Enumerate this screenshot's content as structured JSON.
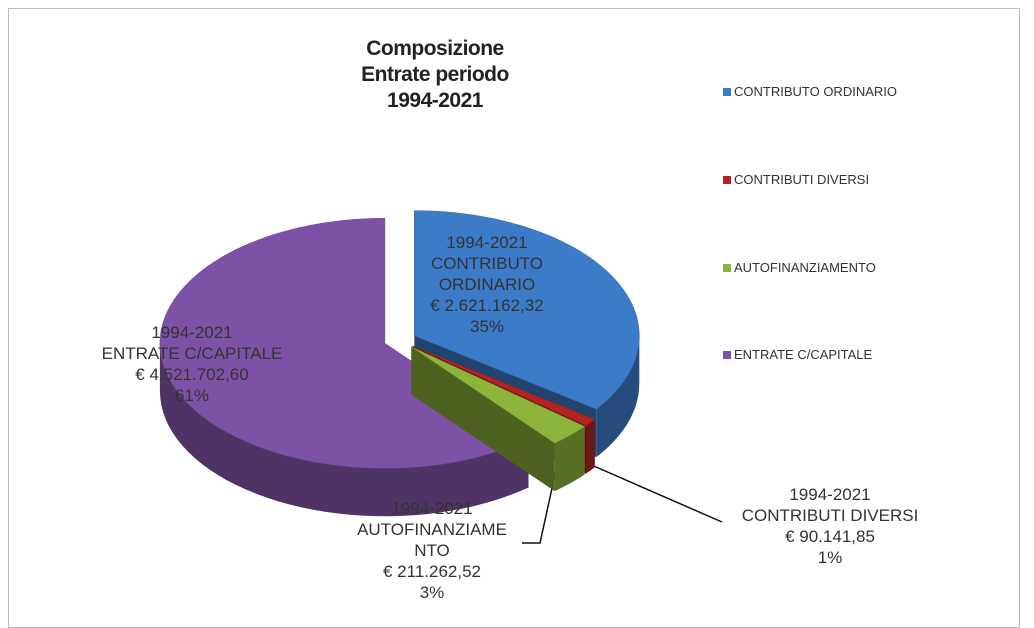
{
  "chart_data": {
    "type": "pie",
    "title": "Composizione Entrate periodo 1994-2021",
    "period": "1994-2021",
    "categories": [
      "CONTRIBUTO ORDINARIO",
      "CONTRIBUTI DIVERSI",
      "AUTOFINANZIAMENTO",
      "ENTRATE C/CAPITALE"
    ],
    "values": [
      35,
      1,
      3,
      61
    ],
    "value_labels": [
      "35%",
      "1%",
      "3%",
      "61%"
    ],
    "amounts": [
      "€ 2.621.162,32",
      "€ 90.141,85",
      "€ 211.262,52",
      "€ 4.521.702,60"
    ],
    "colors": [
      "#3c7bc8",
      "#b42222",
      "#8cb33a",
      "#7d52a6"
    ],
    "legend": "right"
  }
}
